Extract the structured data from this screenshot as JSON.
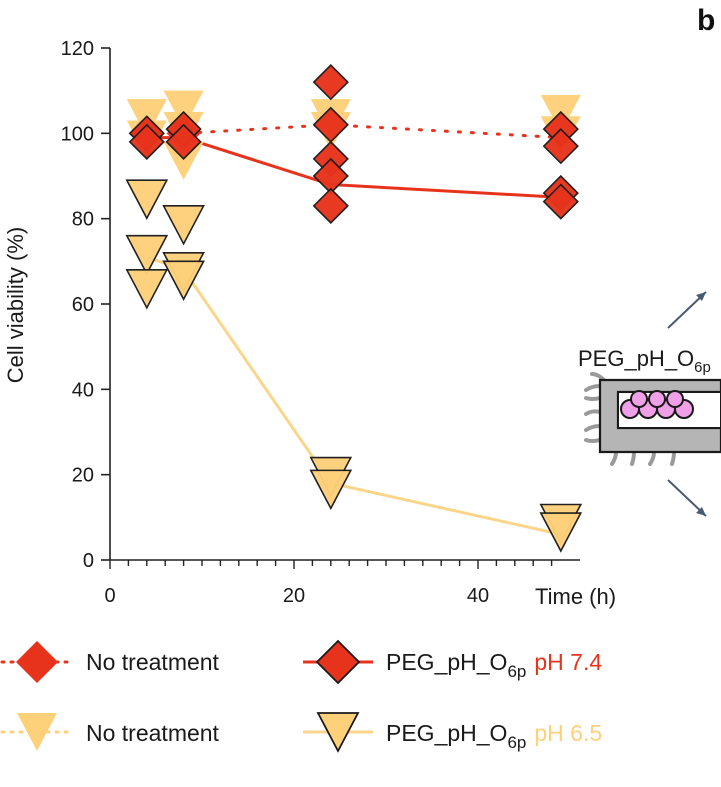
{
  "panel_label": "b",
  "colors": {
    "red": "#e8331c",
    "red_dark": "#8a1a0c",
    "yellow": "#fdd07a",
    "yellow_dark": "#2a2a2a",
    "line_yellow": "#fbd58a",
    "axis": "#222222"
  },
  "inset": {
    "label_main": "PEG_pH_O",
    "label_sub": "6p"
  },
  "legend": {
    "row1_left": "No treatment",
    "row1_right_main": "PEG_pH_O",
    "row1_right_sub": "6p",
    "row1_right_ph": "pH 7.4",
    "row2_left": "No treatment",
    "row2_right_main": "PEG_pH_O",
    "row2_right_sub": "6p",
    "row2_right_ph": "pH 6.5"
  },
  "chart_data": {
    "type": "scatter",
    "xlabel": "Time (h)",
    "ylabel": "Cell viability (%)",
    "xlim": [
      0,
      50
    ],
    "ylim": [
      0,
      120
    ],
    "xticks": [
      0,
      20,
      40
    ],
    "yticks": [
      0,
      20,
      40,
      60,
      80,
      100,
      120
    ],
    "series": [
      {
        "name": "No treatment pH 6.5",
        "marker": "triangle-down",
        "style": "dotted",
        "x": [
          4,
          4,
          8,
          8,
          8,
          24,
          24,
          49,
          49
        ],
        "y": [
          104,
          99,
          106,
          101,
          94,
          104,
          101,
          105,
          100
        ],
        "mean_x": [
          4,
          8,
          24,
          49
        ],
        "mean_y": [
          100,
          100,
          102,
          99
        ]
      },
      {
        "name": "PEG_pH_O6p pH 6.5",
        "marker": "triangle-down",
        "style": "solid",
        "x": [
          4,
          4,
          4,
          8,
          8,
          8,
          24,
          24,
          49,
          49
        ],
        "y": [
          85,
          72,
          64,
          79,
          68,
          66,
          20,
          17,
          9,
          7
        ],
        "mean_x": [
          4,
          8,
          24,
          49
        ],
        "mean_y": [
          71,
          68,
          18,
          6
        ]
      },
      {
        "name": "No treatment pH 7.4",
        "marker": "diamond",
        "style": "dotted",
        "x": [
          4,
          8
        ],
        "y": [
          100,
          100
        ],
        "mean_x": [
          4,
          8,
          24,
          49
        ],
        "mean_y": [
          100,
          100,
          102,
          99
        ]
      },
      {
        "name": "PEG_pH_O6p pH 7.4",
        "marker": "diamond",
        "style": "solid",
        "x": [
          4,
          4,
          8,
          8,
          24,
          24,
          24,
          24,
          24,
          49,
          49,
          49,
          49
        ],
        "y": [
          100,
          98,
          101,
          98,
          112,
          102,
          94,
          90,
          83,
          101,
          97,
          86,
          84
        ],
        "mean_x": [
          4,
          8,
          24,
          49
        ],
        "mean_y": [
          99,
          99,
          88,
          85
        ]
      }
    ]
  }
}
